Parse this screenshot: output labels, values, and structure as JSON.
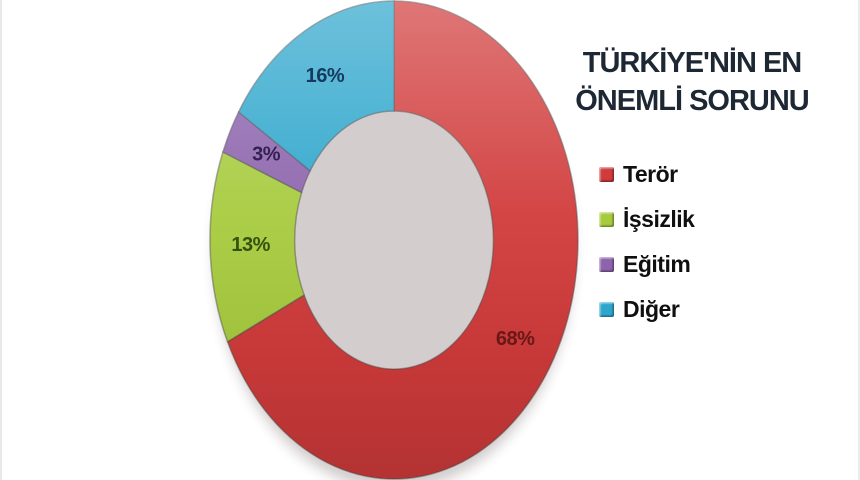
{
  "page": {
    "background_color": "#ffffff"
  },
  "chart_data": {
    "type": "pie",
    "subtype": "doughnut",
    "title": "TÜRKİYE'NİN EN ÖNEMLİ SORUNU",
    "title_lines": [
      "TÜRKİYE'NİN EN",
      "ÖNEMLİ SORUNU"
    ],
    "categories": [
      "Terör",
      "İşsizlik",
      "Eğitim",
      "Diğer"
    ],
    "values": [
      68,
      13,
      3,
      16
    ],
    "unit": "%",
    "slice_labels": [
      "68%",
      "13%",
      "3%",
      "16%"
    ],
    "colors": [
      "#D13B3B",
      "#A7CB3E",
      "#8C63AC",
      "#2EA6CC"
    ],
    "label_colors": [
      "#6B1717",
      "#35510F",
      "#342051",
      "#15395F"
    ],
    "title_color": "#1e2834",
    "legend_position": "right",
    "legend_text_color": "#101010",
    "start_angle_deg": 0,
    "direction": "clockwise",
    "hole_ratio": 0.54
  }
}
